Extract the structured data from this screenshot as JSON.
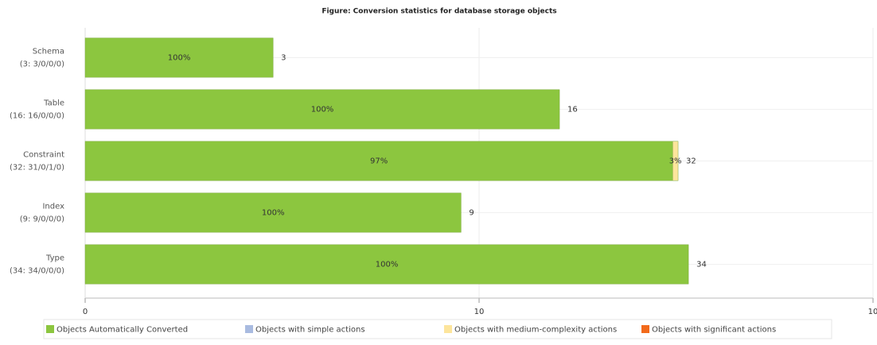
{
  "chart_data": {
    "type": "stacked-bar-horizontal",
    "title": "Figure: Conversion statistics for database storage objects",
    "categories": [
      "Schema",
      "Table",
      "Constraint",
      "Index",
      "Type"
    ],
    "category_details": [
      "(3: 3/0/0/0)",
      "(16: 16/0/0/0)",
      "(32: 31/0/1/0)",
      "(9: 9/0/0/0)",
      "(34: 34/0/0/0)"
    ],
    "series": [
      {
        "name": "Objects Automatically Converted",
        "color": "#8cc63f",
        "values": [
          3,
          16,
          31,
          9,
          34
        ],
        "shares": [
          100,
          100,
          97,
          100,
          100
        ],
        "share_labels": [
          "100%",
          "100%",
          "97%",
          "100%",
          "100%"
        ]
      },
      {
        "name": "Objects with simple actions",
        "color": "#a9bbe0",
        "values": [
          0,
          0,
          0,
          0,
          0
        ]
      },
      {
        "name": "Objects with medium-complexity actions",
        "color": "#fde59c",
        "values": [
          0,
          0,
          1,
          0,
          0
        ],
        "shares": [
          null,
          null,
          3,
          null,
          null
        ],
        "share_labels": [
          null,
          null,
          "3%",
          null,
          null
        ]
      },
      {
        "name": "Objects with significant actions",
        "color": "#f26a1b",
        "values": [
          0,
          0,
          0,
          0,
          0
        ]
      }
    ],
    "totals": [
      3,
      16,
      32,
      9,
      34
    ],
    "x_scale": "log",
    "xlim": [
      1,
      100
    ],
    "xticks": [
      {
        "value": 1,
        "label": "0"
      },
      10,
      {
        "value": 100,
        "label": "10"
      }
    ],
    "grid": true,
    "legend": "bottom"
  }
}
